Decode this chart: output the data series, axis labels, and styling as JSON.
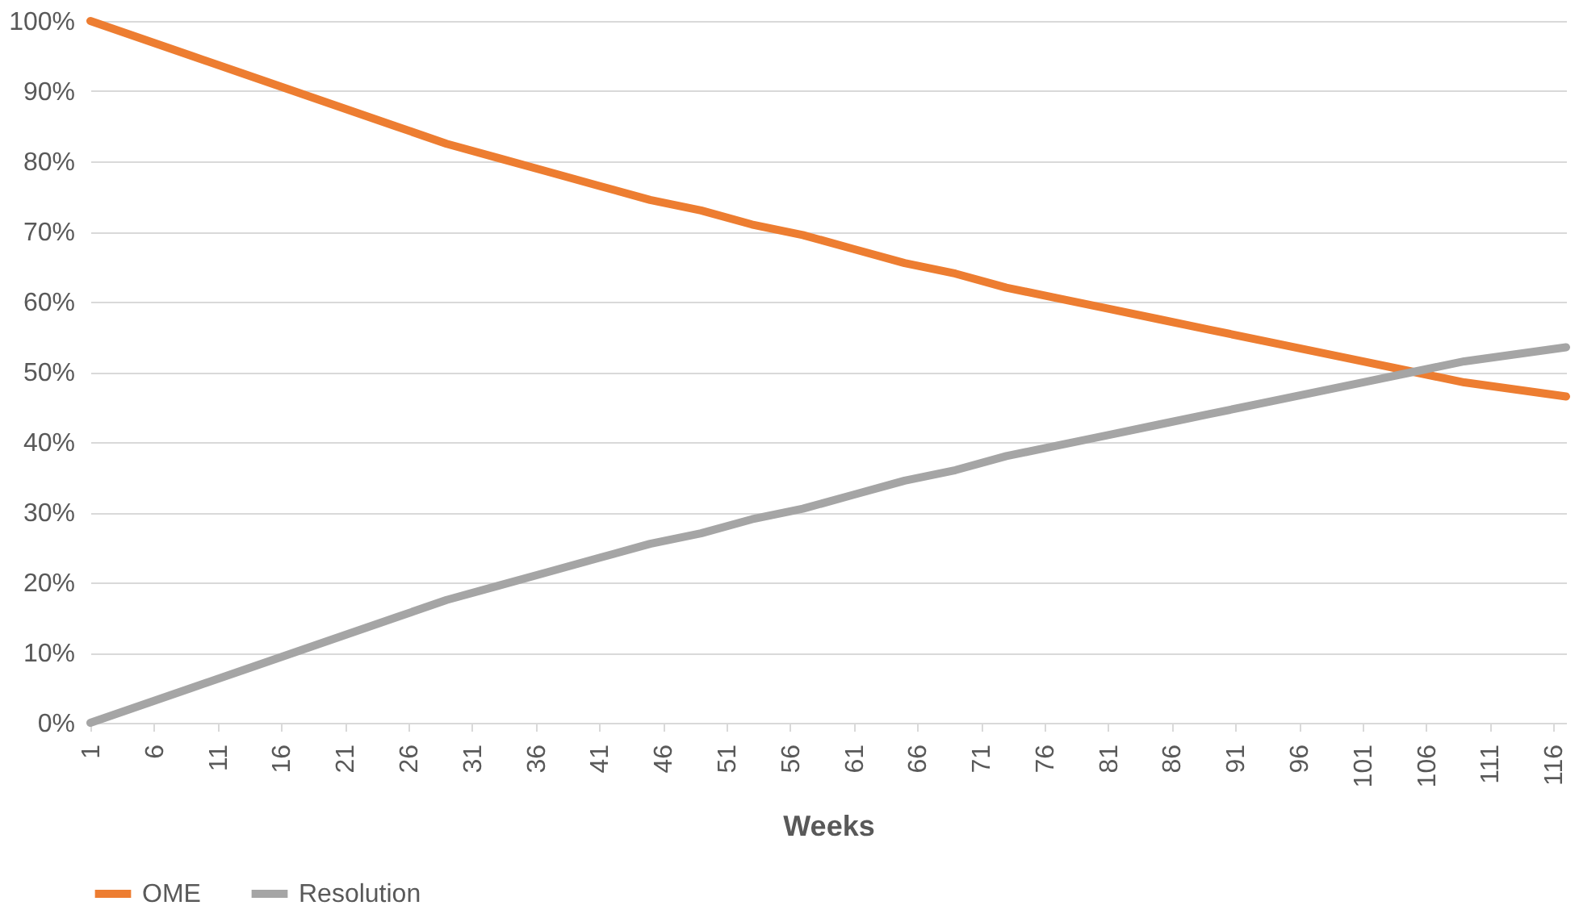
{
  "chart_data": {
    "type": "line",
    "xlabel": "Weeks",
    "x": [
      1,
      5,
      9,
      13,
      17,
      21,
      25,
      29,
      33,
      37,
      41,
      45,
      49,
      53,
      57,
      61,
      65,
      69,
      73,
      77,
      81,
      85,
      89,
      93,
      97,
      101,
      105,
      109,
      113,
      117
    ],
    "series": [
      {
        "name": "OME",
        "color": "#ed7d31",
        "values": [
          100,
          97.5,
          95,
          92.5,
          90,
          87.5,
          85,
          82.5,
          80.5,
          78.5,
          76.5,
          74.5,
          73,
          71,
          69.5,
          67.5,
          65.5,
          64,
          62,
          60.5,
          59,
          57.5,
          56,
          54.5,
          53,
          51.5,
          50,
          48.5,
          47.5,
          46.5
        ]
      },
      {
        "name": "Resolution",
        "color": "#a5a5a5",
        "values": [
          0,
          2.5,
          5,
          7.5,
          10,
          12.5,
          15,
          17.5,
          19.5,
          21.5,
          23.5,
          25.5,
          27,
          29,
          30.5,
          32.5,
          34.5,
          36,
          38,
          39.5,
          41,
          42.5,
          44,
          45.5,
          47,
          48.5,
          50,
          51.5,
          52.5,
          53.5
        ]
      }
    ],
    "xlim": [
      1,
      117
    ],
    "xticks": [
      1,
      6,
      11,
      16,
      21,
      26,
      31,
      36,
      41,
      46,
      51,
      56,
      61,
      66,
      71,
      76,
      81,
      86,
      91,
      96,
      101,
      106,
      111,
      116
    ],
    "ylim": [
      0,
      100
    ],
    "yticks": [
      {
        "value": 0,
        "label": "0%"
      },
      {
        "value": 10,
        "label": "10%"
      },
      {
        "value": 20,
        "label": "20%"
      },
      {
        "value": 30,
        "label": "30%"
      },
      {
        "value": 40,
        "label": "40%"
      },
      {
        "value": 50,
        "label": "50%"
      },
      {
        "value": 60,
        "label": "60%"
      },
      {
        "value": 70,
        "label": "70%"
      },
      {
        "value": 80,
        "label": "80%"
      },
      {
        "value": 90,
        "label": "90%"
      },
      {
        "value": 100,
        "label": "100%"
      }
    ],
    "grid": "y",
    "legend": "bottom",
    "marker": "none",
    "line_style": "solid"
  }
}
